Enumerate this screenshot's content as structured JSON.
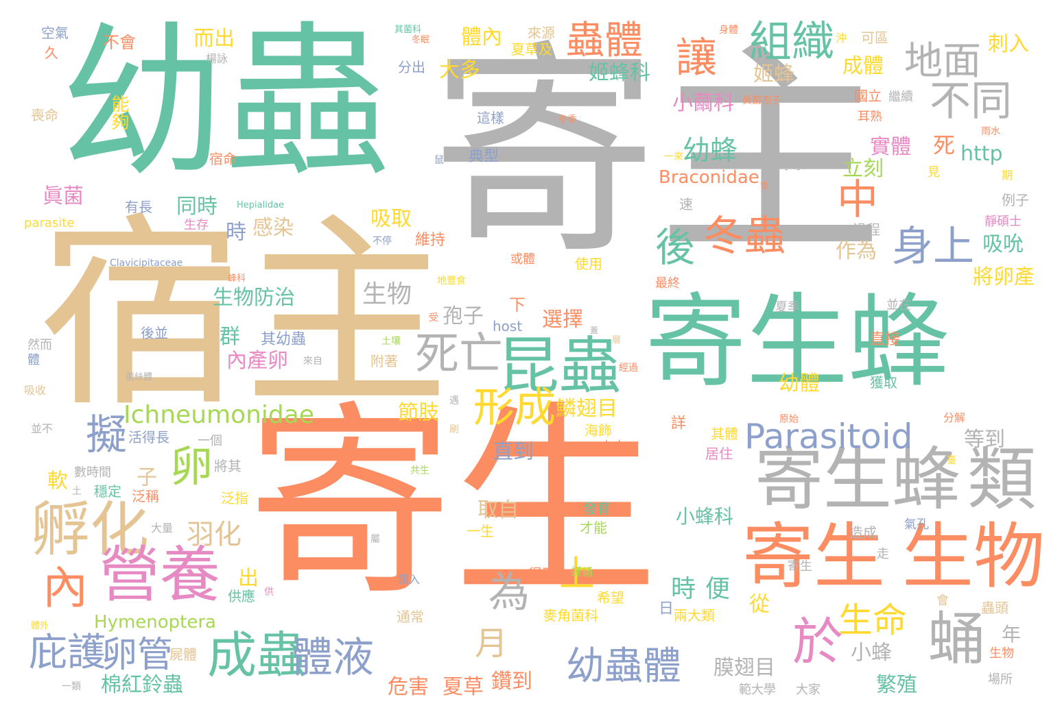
{
  "colors": {
    "gray": "#b3b3b3",
    "green": "#66c2a5",
    "orange": "#fc8d62",
    "tan": "#e5c494",
    "blue": "#8da0cb",
    "pink": "#e78ac3",
    "lime": "#a6d854",
    "yellow": "#ffd92f"
  },
  "words": [
    "寄主",
    "寄生",
    "宿主",
    "幼蟲",
    "寄生蜂",
    "寄生蜂",
    "生物",
    "寄生",
    "類",
    "昆蟲",
    "孵化",
    "營養",
    "成蟲",
    "死亡",
    "蛹",
    "於",
    "冬蟲",
    "身上",
    "中",
    "擬",
    "形成",
    "體液",
    "幼蟲體",
    "Parasitoid",
    "Ichneumonidae",
    "蟲體",
    "組織",
    "讓",
    "地面",
    "不同",
    "後",
    "為",
    "卵",
    "內",
    "庇護",
    "卵管",
    "生命",
    "時",
    "便",
    "月",
    "上",
    "幼蜂",
    "羽化",
    "棉紅鈴蟲",
    "Hymenoptera",
    "膜翅目",
    "鱗翅目",
    "繁殖",
    "鑽到",
    "危害",
    "夏草",
    "實體",
    "死",
    "姬蜂科",
    "姬蜂",
    "大多",
    "體內",
    "而出",
    "小繭科",
    "立刻",
    "成體",
    "http",
    "Braconidae",
    "刺入",
    "將卵產",
    "吸吮",
    "作為",
    "生物防治",
    "吸取",
    "感染",
    "時",
    "同時",
    "孢子",
    "選擇",
    "生物",
    "群",
    "內產卵",
    "其幼蟲",
    "節肢",
    "子",
    "直到",
    "取自",
    "小蜂科",
    "出",
    "從",
    "日",
    "小蜂",
    "年",
    "軟",
    "眞菌",
    "幼體",
    "等到",
    "直接",
    "並在",
    "維持",
    "不會",
    "空氣",
    "來源",
    "夏草及",
    "分出",
    "能夠",
    "喪命",
    "宿命",
    "典型",
    "這樣",
    "國立",
    "繼續",
    "耳熟",
    "科學系",
    "例子",
    "過程",
    "靜碩士",
    "使用",
    "或體",
    "最終",
    "不停",
    "有長",
    "parasite",
    "Clavicipitaceae",
    "Hepialidae",
    "生存",
    "下",
    "host",
    "附著",
    "土壤",
    "後並",
    "菌絲體",
    "吸收",
    "活得長",
    "一個",
    "數時間",
    "將其",
    "穩定",
    "泛稱",
    "泛指",
    "大量",
    "一生",
    "發育",
    "才能",
    "造成",
    "氣孔",
    "走",
    "得到",
    "蟬蛹",
    "希望",
    "兩大類",
    "麥角菌科",
    "蟲頭",
    "會",
    "供應",
    "通常",
    "範大學",
    "大家",
    "場所",
    "其體",
    "居住",
    "共生",
    "左右",
    "海飾",
    "分解",
    "原始",
    "獲取",
    "其菌科",
    "身體",
    "可區",
    "沖",
    "冬季",
    "雨水",
    "期",
    "見",
    "久",
    "楊詠",
    "冬眠",
    "眞菌孢子",
    "並不",
    "鑽入",
    "寄生",
    "生物",
    "一類",
    "屍體",
    "體外",
    "地豐食",
    "受",
    "臺",
    "遇",
    "刷",
    "蓋",
    "層",
    "經過",
    "夏季",
    "詳",
    "食",
    "屬",
    "土",
    "供",
    "鼠",
    "速",
    "一來",
    "蜂科",
    "來自",
    "然而",
    "體"
  ]
}
